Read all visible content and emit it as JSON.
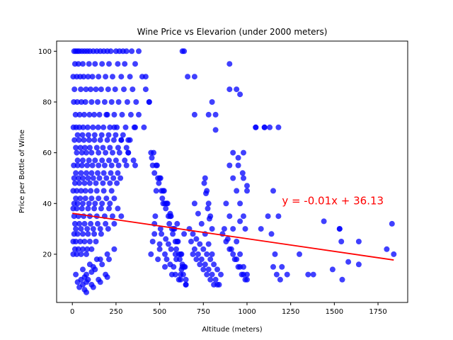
{
  "chart_data": {
    "type": "scatter",
    "title": "Wine Price vs Elevarion (under 2000 meters)",
    "xlabel": "Altitude (meters)",
    "ylabel": "Price per Bottle of Wine",
    "xlim": [
      -90,
      1920
    ],
    "ylim": [
      1,
      104
    ],
    "xticks": [
      0,
      250,
      500,
      750,
      1000,
      1250,
      1500,
      1750
    ],
    "yticks": [
      20,
      40,
      60,
      80,
      100
    ],
    "point_color": "#0000ff",
    "point_alpha": 0.75,
    "regression": {
      "slope": -0.01,
      "intercept": 36.13,
      "x_range": [
        0,
        1840
      ],
      "color": "#ff0000",
      "equation": "y = -0.01x + 36.13",
      "equation_pos": {
        "x": 1200,
        "y": 40
      }
    },
    "series": [
      {
        "x": [
          10,
          20,
          30,
          40,
          55,
          70,
          85,
          100,
          120,
          140,
          160,
          180,
          200,
          220,
          250,
          270,
          290,
          310,
          340,
          380,
          15,
          35,
          60,
          95,
          130,
          170,
          210,
          260,
          300,
          360,
          5,
          25,
          45,
          65,
          90,
          115,
          150,
          190,
          230,
          280,
          330,
          400,
          12,
          48,
          78,
          105,
          135,
          165,
          205,
          245,
          295,
          345,
          420,
          8,
          28,
          52,
          75,
          110,
          145,
          185,
          225,
          265,
          315,
          365,
          440,
          18,
          42,
          68,
          98,
          125,
          155,
          195,
          240,
          285,
          335,
          6,
          22,
          40,
          62,
          88,
          118,
          148,
          178,
          215,
          255,
          305,
          355,
          410,
          30,
          58,
          92,
          128,
          168,
          208,
          248,
          290,
          12,
          38,
          66,
          96,
          126,
          160,
          200,
          238,
          280,
          320,
          20,
          46,
          72,
          100,
          140,
          175,
          215,
          262,
          310,
          25,
          55,
          80,
          110,
          150,
          190,
          230,
          270,
          30,
          60,
          95,
          130,
          170,
          210,
          250,
          300,
          350,
          8,
          30,
          55,
          85,
          115,
          150,
          185,
          225,
          265,
          310,
          360,
          20,
          50,
          80,
          110,
          145,
          180,
          220,
          260,
          10,
          35,
          60,
          90,
          120,
          155,
          195,
          235,
          275,
          15,
          40,
          70,
          100,
          135,
          175,
          215,
          255,
          5,
          25,
          50,
          75,
          105,
          140,
          180,
          225,
          20,
          45,
          75,
          110,
          150,
          195,
          240,
          10,
          30,
          60,
          95,
          130,
          170,
          215,
          5,
          25,
          55,
          90,
          125,
          165,
          210,
          260,
          10,
          35,
          65,
          100,
          140,
          185,
          230,
          280,
          15,
          40,
          70,
          105,
          145,
          190,
          240,
          20,
          50,
          85,
          120,
          160,
          205,
          10,
          30,
          60,
          90,
          125,
          165,
          5,
          20,
          45,
          70,
          100,
          135,
          15,
          35,
          60,
          85,
          110,
          5,
          25,
          50,
          80,
          450,
          480,
          500,
          520,
          540,
          560,
          580,
          600,
          620,
          640,
          455,
          470,
          495,
          515,
          535,
          555,
          575,
          595,
          615,
          635,
          460,
          490,
          510,
          530,
          550,
          570,
          590,
          610,
          630,
          650,
          465,
          485,
          505,
          525,
          545,
          565,
          585,
          605,
          625,
          645,
          470,
          500,
          530,
          560,
          590,
          620,
          650,
          475,
          505,
          535,
          565,
          595,
          625,
          480,
          520,
          560,
          600,
          640,
          450,
          490,
          530,
          570,
          610,
          650,
          460,
          500,
          540,
          580,
          620,
          470,
          510,
          550,
          590,
          630,
          670,
          690,
          710,
          730,
          750,
          770,
          790,
          810,
          830,
          850,
          680,
          700,
          720,
          740,
          760,
          780,
          800,
          820,
          840,
          690,
          710,
          730,
          750,
          770,
          790,
          810,
          830,
          700,
          720,
          740,
          760,
          780,
          800,
          760,
          770,
          780,
          790,
          800,
          755,
          765,
          775,
          785,
          780,
          800,
          820,
          860,
          880,
          900,
          920,
          940,
          960,
          980,
          1000,
          870,
          890,
          910,
          930,
          950,
          970,
          990,
          880,
          900,
          920,
          940,
          960,
          980,
          1000,
          900,
          920,
          940,
          960,
          980,
          920,
          950,
          980,
          1000,
          950,
          975,
          1050,
          1100,
          1150,
          1180,
          1200,
          1230,
          1080,
          1120,
          1140,
          1160,
          1190,
          1150,
          1170,
          1300,
          1350,
          1380,
          1440,
          1490,
          1530,
          1540,
          1580,
          1640,
          1800,
          1840,
          1530,
          1545,
          1640,
          1830,
          420,
          440,
          380,
          360,
          330,
          320,
          200,
          240,
          280,
          320,
          640,
          700,
          50,
          80,
          120,
          160,
          200,
          240,
          60,
          90,
          130,
          170,
          210,
          70,
          110,
          150,
          190,
          80,
          120,
          160,
          200,
          20,
          60,
          100,
          140,
          30,
          70,
          110,
          40,
          80,
          900,
          940,
          960,
          980,
          820,
          900,
          1000,
          1050,
          1100,
          1130,
          960,
          990,
          1180,
          630,
          660,
          700
        ],
        "y": [
          100,
          100,
          100,
          100,
          100,
          100,
          100,
          100,
          100,
          100,
          100,
          100,
          100,
          100,
          100,
          100,
          100,
          100,
          100,
          100,
          95,
          95,
          95,
          95,
          95,
          95,
          95,
          95,
          95,
          95,
          90,
          90,
          90,
          90,
          90,
          90,
          90,
          90,
          90,
          90,
          90,
          90,
          85,
          85,
          85,
          85,
          85,
          85,
          85,
          85,
          85,
          85,
          85,
          80,
          80,
          80,
          80,
          80,
          80,
          80,
          80,
          80,
          80,
          80,
          80,
          75,
          75,
          75,
          75,
          75,
          75,
          75,
          75,
          75,
          75,
          70,
          70,
          70,
          70,
          70,
          70,
          70,
          70,
          70,
          70,
          70,
          70,
          70,
          67,
          67,
          67,
          67,
          67,
          67,
          67,
          67,
          65,
          65,
          65,
          65,
          65,
          65,
          65,
          65,
          65,
          65,
          62,
          62,
          62,
          62,
          62,
          62,
          62,
          62,
          62,
          60,
          60,
          60,
          60,
          60,
          60,
          60,
          60,
          57,
          57,
          57,
          57,
          57,
          57,
          57,
          57,
          57,
          55,
          55,
          55,
          55,
          55,
          55,
          55,
          55,
          55,
          55,
          55,
          52,
          52,
          52,
          52,
          52,
          52,
          52,
          52,
          50,
          50,
          50,
          50,
          50,
          50,
          50,
          50,
          50,
          48,
          48,
          48,
          48,
          48,
          48,
          48,
          48,
          45,
          45,
          45,
          45,
          45,
          45,
          45,
          45,
          42,
          42,
          42,
          42,
          42,
          42,
          42,
          40,
          40,
          40,
          40,
          40,
          40,
          40,
          38,
          38,
          38,
          38,
          38,
          38,
          38,
          38,
          35,
          35,
          35,
          35,
          35,
          35,
          35,
          35,
          32,
          32,
          32,
          32,
          32,
          32,
          32,
          30,
          30,
          30,
          30,
          30,
          30,
          28,
          28,
          28,
          28,
          28,
          28,
          25,
          25,
          25,
          25,
          25,
          25,
          22,
          22,
          22,
          22,
          22,
          20,
          20,
          20,
          20,
          60,
          55,
          50,
          45,
          40,
          35,
          30,
          25,
          20,
          15,
          58,
          52,
          48,
          42,
          38,
          32,
          28,
          22,
          18,
          12,
          55,
          50,
          45,
          40,
          35,
          30,
          25,
          20,
          15,
          10,
          60,
          55,
          50,
          45,
          40,
          35,
          30,
          25,
          20,
          15,
          28,
          24,
          20,
          16,
          12,
          10,
          8,
          35,
          30,
          26,
          22,
          18,
          14,
          45,
          40,
          36,
          32,
          28,
          20,
          18,
          15,
          12,
          10,
          8,
          25,
          22,
          18,
          15,
          12,
          32,
          28,
          24,
          20,
          16,
          30,
          28,
          26,
          24,
          22,
          20,
          18,
          16,
          14,
          12,
          25,
          22,
          20,
          18,
          16,
          14,
          12,
          10,
          8,
          20,
          18,
          16,
          14,
          12,
          10,
          8,
          8,
          40,
          36,
          32,
          28,
          24,
          20,
          50,
          45,
          40,
          35,
          30,
          48,
          44,
          38,
          34,
          75,
          80,
          75,
          28,
          25,
          22,
          20,
          18,
          15,
          12,
          10,
          30,
          26,
          22,
          18,
          15,
          12,
          10,
          40,
          35,
          30,
          25,
          20,
          15,
          12,
          55,
          50,
          45,
          40,
          35,
          60,
          55,
          50,
          45,
          58,
          52,
          70,
          70,
          45,
          70,
          15,
          12,
          30,
          35,
          28,
          20,
          10,
          15,
          12,
          20,
          12,
          12,
          33,
          14,
          30,
          25,
          17,
          25,
          22,
          20,
          30,
          10,
          16,
          32,
          90,
          80,
          75,
          70,
          65,
          60,
          75,
          70,
          65,
          60,
          100,
          90,
          10,
          12,
          15,
          18,
          20,
          22,
          8,
          10,
          14,
          16,
          18,
          6,
          8,
          10,
          12,
          5,
          7,
          9,
          11,
          12,
          14,
          16,
          18,
          9,
          11,
          13,
          7,
          9,
          95,
          85,
          83,
          60,
          69,
          85,
          47,
          70,
          70,
          70,
          33,
          30,
          35,
          100,
          90,
          75
        ]
      }
    ]
  }
}
